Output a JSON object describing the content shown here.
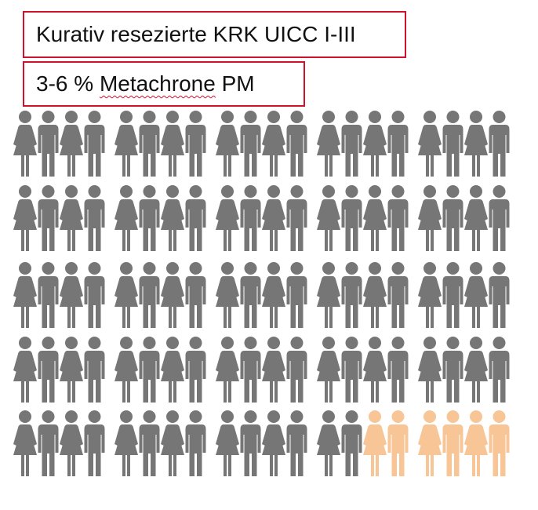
{
  "title": "Kurativ resezierte KRK UICC I-III",
  "subtitle": {
    "percent": "3-6 %",
    "word": "Metachrone",
    "abbr": "PM"
  },
  "chart_data": {
    "type": "pictogram",
    "rows": 5,
    "columns": 20,
    "total": 100,
    "highlighted": 6,
    "highlighted_position": "end of last row",
    "colors": {
      "base": "#767676",
      "highlight": "#f8c596"
    }
  }
}
